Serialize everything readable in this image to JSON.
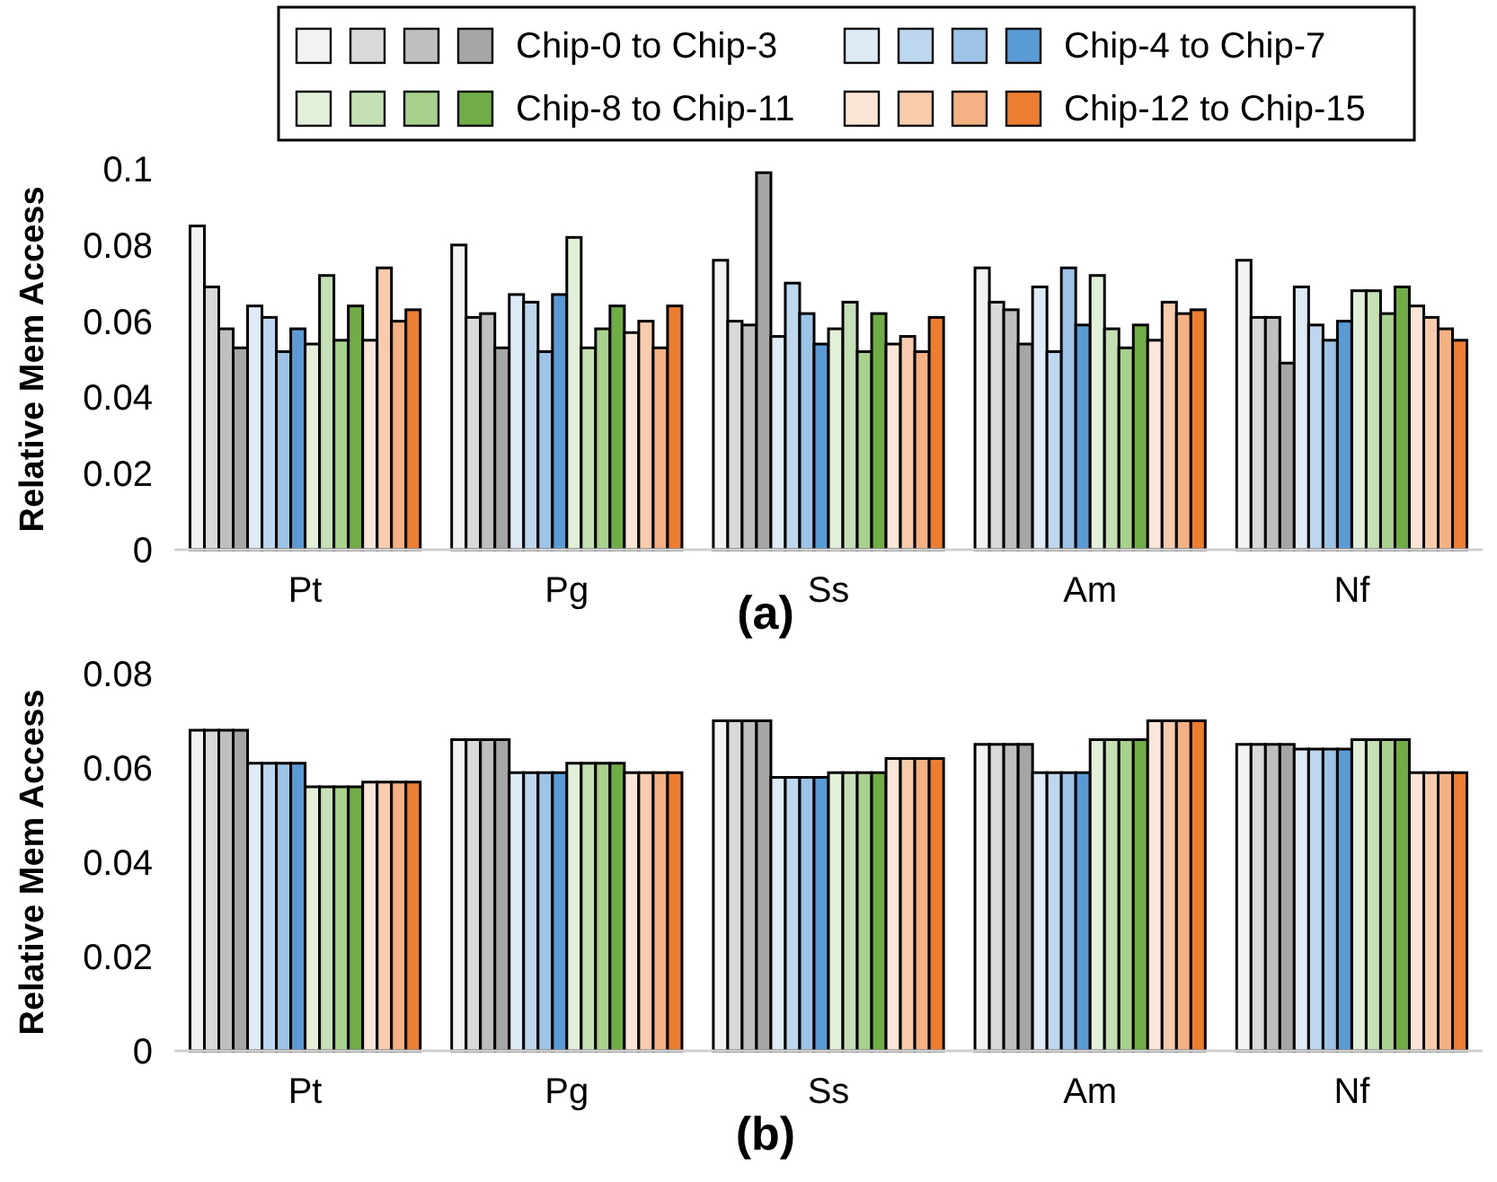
{
  "chart_data": [
    {
      "type": "bar",
      "title": "(a)",
      "ylabel": "Relative Mem Access",
      "categories": [
        "Pt",
        "Pg",
        "Ss",
        "Am",
        "Nf"
      ],
      "ylim": [
        0,
        0.1
      ],
      "yticks": [
        0,
        0.02,
        0.04,
        0.06,
        0.08,
        0.1
      ],
      "grid": false,
      "legend": "top",
      "series": [
        {
          "color": "#f2f2f2",
          "values": [
            0.085,
            0.08,
            0.076,
            0.074,
            0.076
          ]
        },
        {
          "color": "#d9d9d9",
          "values": [
            0.069,
            0.061,
            0.06,
            0.065,
            0.061
          ]
        },
        {
          "color": "#bfbfbf",
          "values": [
            0.058,
            0.062,
            0.059,
            0.063,
            0.061
          ]
        },
        {
          "name": "Chip-0 to Chip-3",
          "color": "#a6a6a6",
          "values": [
            0.053,
            0.053,
            0.099,
            0.054,
            0.049
          ]
        },
        {
          "color": "#deebf7",
          "values": [
            0.064,
            0.067,
            0.056,
            0.069,
            0.069
          ]
        },
        {
          "color": "#bdd7ee",
          "values": [
            0.061,
            0.065,
            0.07,
            0.052,
            0.059
          ]
        },
        {
          "color": "#9dc3e6",
          "values": [
            0.052,
            0.052,
            0.062,
            0.074,
            0.055
          ]
        },
        {
          "name": "Chip-4 to Chip-7",
          "color": "#5b9bd5",
          "values": [
            0.058,
            0.067,
            0.054,
            0.059,
            0.06
          ]
        },
        {
          "color": "#e2f0d9",
          "values": [
            0.054,
            0.082,
            0.058,
            0.072,
            0.068
          ]
        },
        {
          "color": "#c5e0b4",
          "values": [
            0.072,
            0.053,
            0.065,
            0.058,
            0.068
          ]
        },
        {
          "color": "#a9d18e",
          "values": [
            0.055,
            0.058,
            0.052,
            0.053,
            0.062
          ]
        },
        {
          "name": "Chip-8 to Chip-11",
          "color": "#70ad47",
          "values": [
            0.064,
            0.064,
            0.062,
            0.059,
            0.069
          ]
        },
        {
          "color": "#fbe5d6",
          "values": [
            0.055,
            0.057,
            0.054,
            0.055,
            0.064
          ]
        },
        {
          "color": "#f8cbad",
          "values": [
            0.074,
            0.06,
            0.056,
            0.065,
            0.061
          ]
        },
        {
          "color": "#f4b183",
          "values": [
            0.06,
            0.053,
            0.052,
            0.062,
            0.058
          ]
        },
        {
          "name": "Chip-12 to Chip-15",
          "color": "#ed7d31",
          "values": [
            0.063,
            0.064,
            0.061,
            0.063,
            0.055
          ]
        }
      ]
    },
    {
      "type": "bar",
      "title": "(b)",
      "ylabel": "Relative Mem Access",
      "categories": [
        "Pt",
        "Pg",
        "Ss",
        "Am",
        "Nf"
      ],
      "ylim": [
        0,
        0.08
      ],
      "yticks": [
        0,
        0.02,
        0.04,
        0.06,
        0.08
      ],
      "grid": false,
      "legend": false,
      "series": [
        {
          "color": "#f2f2f2",
          "values": [
            0.068,
            0.066,
            0.07,
            0.065,
            0.065
          ]
        },
        {
          "color": "#d9d9d9",
          "values": [
            0.068,
            0.066,
            0.07,
            0.065,
            0.065
          ]
        },
        {
          "color": "#bfbfbf",
          "values": [
            0.068,
            0.066,
            0.07,
            0.065,
            0.065
          ]
        },
        {
          "color": "#a6a6a6",
          "values": [
            0.068,
            0.066,
            0.07,
            0.065,
            0.065
          ]
        },
        {
          "color": "#deebf7",
          "values": [
            0.061,
            0.059,
            0.058,
            0.059,
            0.064
          ]
        },
        {
          "color": "#bdd7ee",
          "values": [
            0.061,
            0.059,
            0.058,
            0.059,
            0.064
          ]
        },
        {
          "color": "#9dc3e6",
          "values": [
            0.061,
            0.059,
            0.058,
            0.059,
            0.064
          ]
        },
        {
          "color": "#5b9bd5",
          "values": [
            0.061,
            0.059,
            0.058,
            0.059,
            0.064
          ]
        },
        {
          "color": "#e2f0d9",
          "values": [
            0.056,
            0.061,
            0.059,
            0.066,
            0.066
          ]
        },
        {
          "color": "#c5e0b4",
          "values": [
            0.056,
            0.061,
            0.059,
            0.066,
            0.066
          ]
        },
        {
          "color": "#a9d18e",
          "values": [
            0.056,
            0.061,
            0.059,
            0.066,
            0.066
          ]
        },
        {
          "color": "#70ad47",
          "values": [
            0.056,
            0.061,
            0.059,
            0.066,
            0.066
          ]
        },
        {
          "color": "#fbe5d6",
          "values": [
            0.057,
            0.059,
            0.062,
            0.07,
            0.059
          ]
        },
        {
          "color": "#f8cbad",
          "values": [
            0.057,
            0.059,
            0.062,
            0.07,
            0.059
          ]
        },
        {
          "color": "#f4b183",
          "values": [
            0.057,
            0.059,
            0.062,
            0.07,
            0.059
          ]
        },
        {
          "color": "#ed7d31",
          "values": [
            0.057,
            0.059,
            0.062,
            0.07,
            0.059
          ]
        }
      ]
    }
  ]
}
